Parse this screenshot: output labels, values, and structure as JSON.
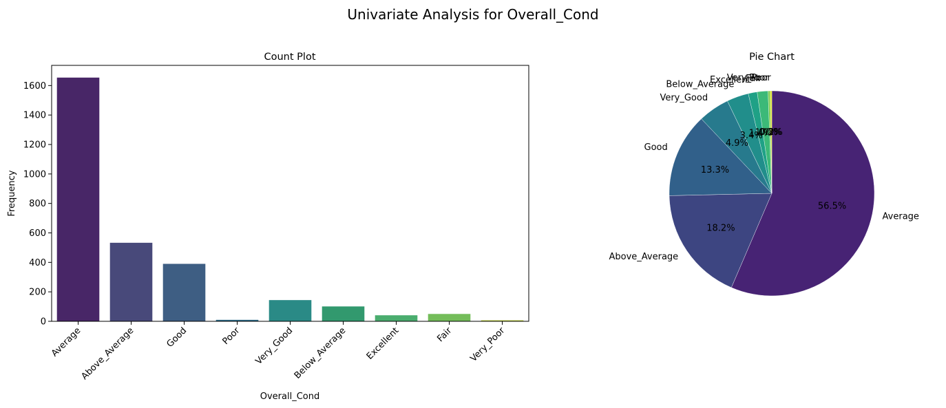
{
  "figure": {
    "title": "Univariate Analysis for Overall_Cond"
  },
  "chart_data": [
    {
      "type": "bar",
      "title": "Count Plot",
      "xlabel": "Overall_Cond",
      "ylabel": "Frequency",
      "categories": [
        "Average",
        "Above_Average",
        "Good",
        "Poor",
        "Very_Good",
        "Below_Average",
        "Excellent",
        "Fair",
        "Very_Poor"
      ],
      "values": [
        1654,
        533,
        390,
        10,
        144,
        101,
        41,
        50,
        7
      ],
      "colors": [
        "#482667",
        "#48497a",
        "#3e5e83",
        "#2c6a87",
        "#2a8a86",
        "#32996e",
        "#4aad6e",
        "#74bd5a",
        "#b7c83a"
      ],
      "ylim": [
        0,
        1737
      ],
      "yticks": [
        0,
        200,
        400,
        600,
        800,
        1000,
        1200,
        1400,
        1600
      ],
      "grid": false
    },
    {
      "type": "pie",
      "title": "Pie Chart",
      "labels": [
        "Average",
        "Above_Average",
        "Good",
        "Very_Good",
        "Below_Average",
        "Excellent",
        "Fair",
        "Poor",
        "Very_Poor"
      ],
      "values": [
        1654,
        533,
        390,
        144,
        101,
        41,
        50,
        10,
        7
      ],
      "percent_labels": [
        "56.5%",
        "18.2%",
        "13.3%",
        "4.9%",
        "3.4%",
        "1.4%",
        "1.7%",
        "0.3%",
        "0.2%"
      ],
      "colors": [
        "#472374",
        "#3d4581",
        "#31608a",
        "#277a8d",
        "#218e8b",
        "#1fa186",
        "#3cb978",
        "#80ce4d",
        "#dfe318"
      ],
      "startangle": 90,
      "direction": "clockwise"
    }
  ]
}
